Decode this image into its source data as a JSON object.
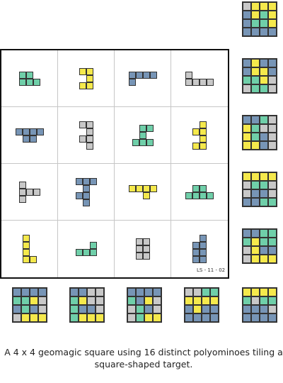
{
  "colors": {
    "G": "#6fcfa9",
    "B": "#7795b6",
    "Y": "#f5e94c",
    "W": "#c8c8c8"
  },
  "code": "LS - 11 - 02",
  "caption": "A 4 x 4 geomagic square using 16 distinct polyominoes tiling a square-shaped target.",
  "grid": [
    [
      {
        "color": "G",
        "shape": [
          "XX.",
          "XXX"
        ]
      },
      {
        "color": "Y",
        "shape": [
          "XX",
          ".X",
          "XX"
        ]
      },
      {
        "color": "B",
        "shape": [
          "XXXX",
          "X..."
        ]
      },
      {
        "color": "W",
        "shape": [
          "X...",
          "XXXX"
        ]
      }
    ],
    [
      {
        "color": "B",
        "shape": [
          "XXXX",
          ".XX."
        ]
      },
      {
        "color": "W",
        "shape": [
          "XX",
          ".X",
          "XX",
          ".X"
        ]
      },
      {
        "color": "G",
        "shape": [
          ".XX",
          ".X.",
          "XXX"
        ]
      },
      {
        "color": "Y",
        "shape": [
          ".X",
          "XX",
          ".X",
          "XX"
        ]
      }
    ],
    [
      {
        "color": "W",
        "shape": [
          "X..",
          "XXX",
          "X.."
        ]
      },
      {
        "color": "B",
        "shape": [
          "XXX",
          ".X.",
          "XX.",
          ".X."
        ]
      },
      {
        "color": "Y",
        "shape": [
          "XXXX",
          "..X."
        ]
      },
      {
        "color": "G",
        "shape": [
          ".XX.",
          "XXXX"
        ]
      }
    ],
    [
      {
        "color": "Y",
        "shape": [
          "X.",
          "X.",
          "X.",
          "XX"
        ]
      },
      {
        "color": "G",
        "shape": [
          "..X",
          "XXX"
        ]
      },
      {
        "color": "W",
        "shape": [
          "XX",
          "XX",
          "XX"
        ]
      },
      {
        "color": "B",
        "shape": [
          ".X",
          "XX",
          "XX",
          "XX"
        ]
      }
    ]
  ],
  "right_targets": [
    [
      "WYYY",
      "BYGY",
      "BGGY",
      "BBBB"
    ],
    [
      "BYBB",
      "BYYB",
      "GGYW",
      "WGGW"
    ],
    [
      "BBGW",
      "YGWW",
      "YGBW",
      "YYBW"
    ],
    [
      "YYYY",
      "WGGW",
      "WBBW",
      "BBGG"
    ],
    [
      "BBGG",
      "GYGG",
      "WYBB",
      "WYYY"
    ]
  ],
  "bottom_targets": [
    [
      "BBBB",
      "GGYW",
      "BGBW",
      "WYYY"
    ],
    [
      "BBWW",
      "GYWW",
      "GBBW",
      "GYYY"
    ],
    [
      "BBBB",
      "GBYW",
      "WGBW",
      "WGYY"
    ],
    [
      "WWGG",
      "YYYY",
      "BYBB",
      "BBBB"
    ],
    [
      "YYYY",
      "GWGG",
      "BBBW",
      "BBBB"
    ]
  ]
}
